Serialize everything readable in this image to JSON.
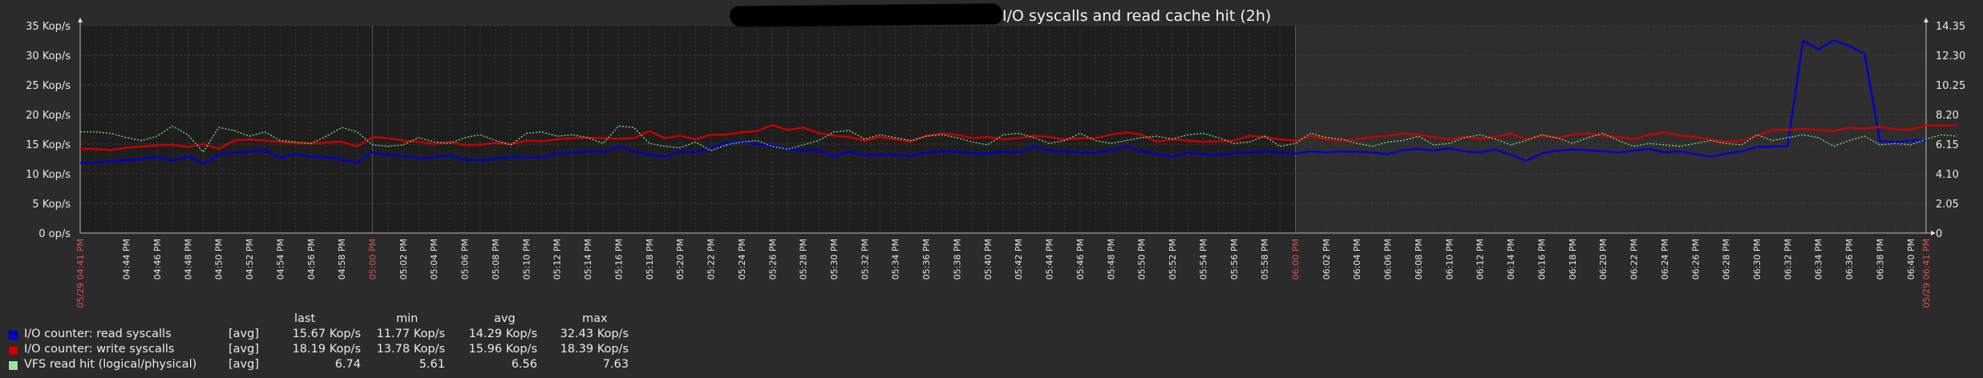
{
  "title": "I/O syscalls and read cache hit (2h)",
  "chart_data": {
    "type": "line",
    "y_left": {
      "min": 0,
      "max": 35,
      "ticks": [
        "0 op/s",
        "5 Kop/s",
        "10 Kop/s",
        "15 Kop/s",
        "20 Kop/s",
        "25 Kop/s",
        "30 Kop/s",
        "35 Kop/s"
      ]
    },
    "y_right": {
      "min": 0,
      "max": 14.35,
      "ticks": [
        "0",
        "2.05",
        "4.10",
        "6.15",
        "8.20",
        "10.25",
        "12.30",
        "14.35"
      ]
    },
    "x_labels": [
      {
        "t": 0,
        "label": "05/29 04:41 PM",
        "red": true
      },
      {
        "t": 3,
        "label": "04:44 PM"
      },
      {
        "t": 5,
        "label": "04:46 PM"
      },
      {
        "t": 7,
        "label": "04:48 PM"
      },
      {
        "t": 9,
        "label": "04:50 PM"
      },
      {
        "t": 11,
        "label": "04:52 PM"
      },
      {
        "t": 13,
        "label": "04:54 PM"
      },
      {
        "t": 15,
        "label": "04:56 PM"
      },
      {
        "t": 17,
        "label": "04:58 PM"
      },
      {
        "t": 19,
        "label": "05:00 PM",
        "red": true
      },
      {
        "t": 21,
        "label": "05:02 PM"
      },
      {
        "t": 23,
        "label": "05:04 PM"
      },
      {
        "t": 25,
        "label": "05:06 PM"
      },
      {
        "t": 27,
        "label": "05:08 PM"
      },
      {
        "t": 29,
        "label": "05:10 PM"
      },
      {
        "t": 31,
        "label": "05:12 PM"
      },
      {
        "t": 33,
        "label": "05:14 PM"
      },
      {
        "t": 35,
        "label": "05:16 PM"
      },
      {
        "t": 37,
        "label": "05:18 PM"
      },
      {
        "t": 39,
        "label": "05:20 PM"
      },
      {
        "t": 41,
        "label": "05:22 PM"
      },
      {
        "t": 43,
        "label": "05:24 PM"
      },
      {
        "t": 45,
        "label": "05:26 PM"
      },
      {
        "t": 47,
        "label": "05:28 PM"
      },
      {
        "t": 49,
        "label": "05:30 PM"
      },
      {
        "t": 51,
        "label": "05:32 PM"
      },
      {
        "t": 53,
        "label": "05:34 PM"
      },
      {
        "t": 55,
        "label": "05:36 PM"
      },
      {
        "t": 57,
        "label": "05:38 PM"
      },
      {
        "t": 59,
        "label": "05:40 PM"
      },
      {
        "t": 61,
        "label": "05:42 PM"
      },
      {
        "t": 63,
        "label": "05:44 PM"
      },
      {
        "t": 65,
        "label": "05:46 PM"
      },
      {
        "t": 67,
        "label": "05:48 PM"
      },
      {
        "t": 69,
        "label": "05:50 PM"
      },
      {
        "t": 71,
        "label": "05:52 PM"
      },
      {
        "t": 73,
        "label": "05:54 PM"
      },
      {
        "t": 75,
        "label": "05:56 PM"
      },
      {
        "t": 77,
        "label": "05:58 PM"
      },
      {
        "t": 79,
        "label": "06:00 PM",
        "red": true
      },
      {
        "t": 81,
        "label": "06:02 PM"
      },
      {
        "t": 83,
        "label": "06:04 PM"
      },
      {
        "t": 85,
        "label": "06:06 PM"
      },
      {
        "t": 87,
        "label": "06:08 PM"
      },
      {
        "t": 89,
        "label": "06:10 PM"
      },
      {
        "t": 91,
        "label": "06:12 PM"
      },
      {
        "t": 93,
        "label": "06:14 PM"
      },
      {
        "t": 95,
        "label": "06:16 PM"
      },
      {
        "t": 97,
        "label": "06:18 PM"
      },
      {
        "t": 99,
        "label": "06:20 PM"
      },
      {
        "t": 101,
        "label": "06:22 PM"
      },
      {
        "t": 103,
        "label": "06:24 PM"
      },
      {
        "t": 105,
        "label": "06:26 PM"
      },
      {
        "t": 107,
        "label": "06:28 PM"
      },
      {
        "t": 109,
        "label": "06:30 PM"
      },
      {
        "t": 111,
        "label": "06:32 PM"
      },
      {
        "t": 113,
        "label": "06:34 PM"
      },
      {
        "t": 115,
        "label": "06:36 PM"
      },
      {
        "t": 117,
        "label": "06:38 PM"
      },
      {
        "t": 119,
        "label": "06:40 PM"
      },
      {
        "t": 120,
        "label": "05/29 06:41 PM",
        "red": true
      }
    ],
    "series": [
      {
        "name": "I/O counter: read syscalls",
        "axis": "left",
        "color": "#0000cc",
        "style": "solid",
        "values": [
          11.8,
          11.9,
          12.1,
          12.3,
          12.5,
          12.8,
          12.2,
          12.9,
          11.7,
          13.2,
          13.6,
          13.8,
          14.0,
          12.6,
          13.4,
          12.9,
          12.8,
          12.4,
          11.9,
          13.6,
          13.2,
          13.0,
          12.6,
          12.7,
          13.1,
          12.4,
          12.3,
          12.5,
          12.9,
          12.7,
          12.8,
          13.4,
          13.6,
          13.8,
          13.7,
          14.6,
          13.8,
          13.2,
          12.9,
          13.8,
          13.6,
          14.3,
          15.2,
          15.4,
          15.0,
          14.8,
          14.2,
          13.9,
          14.0,
          12.9,
          13.8,
          13.1,
          13.3,
          13.2,
          13.0,
          13.6,
          13.8,
          13.7,
          13.5,
          13.4,
          13.8,
          13.6,
          14.6,
          13.9,
          13.8,
          13.6,
          13.5,
          14.0,
          14.6,
          13.8,
          13.3,
          12.9,
          13.6,
          13.3,
          13.2,
          13.5,
          13.6,
          13.8,
          13.6,
          13.4,
          13.8,
          13.6,
          13.8,
          13.7,
          13.6,
          13.3,
          14.0,
          14.2,
          13.9,
          14.3,
          13.8,
          13.6,
          14.1,
          13.2,
          12.2,
          13.4,
          13.9,
          14.1,
          14.0,
          13.8,
          13.6,
          13.9,
          14.2,
          13.6,
          13.8,
          13.3,
          12.9,
          13.4,
          13.8,
          14.5,
          14.6,
          14.7,
          32.4,
          31.0,
          32.5,
          31.6,
          30.2,
          15.6,
          15.3,
          15.6,
          15.7
        ]
      },
      {
        "name": "I/O counter: write syscalls",
        "axis": "left",
        "color": "#cc0000",
        "style": "solid",
        "values": [
          14.2,
          14.2,
          14.0,
          14.4,
          14.6,
          14.8,
          14.9,
          14.5,
          15.0,
          14.2,
          15.6,
          15.8,
          15.6,
          15.4,
          15.2,
          15.1,
          15.3,
          15.4,
          14.6,
          16.2,
          16.0,
          15.6,
          15.4,
          15.0,
          15.4,
          14.8,
          14.9,
          15.2,
          15.0,
          15.6,
          15.5,
          15.8,
          16.0,
          16.1,
          16.0,
          15.9,
          16.0,
          17.2,
          16.0,
          16.4,
          15.8,
          16.6,
          16.6,
          17.0,
          17.2,
          18.2,
          17.4,
          17.8,
          16.9,
          16.4,
          16.2,
          15.6,
          16.2,
          15.8,
          15.4,
          16.4,
          16.8,
          16.6,
          16.0,
          16.2,
          15.8,
          16.0,
          16.4,
          16.2,
          15.8,
          16.0,
          16.0,
          16.6,
          17.0,
          16.6,
          15.4,
          15.8,
          15.6,
          15.4,
          15.5,
          15.6,
          16.4,
          16.2,
          15.8,
          15.6,
          16.4,
          15.8,
          15.6,
          15.8,
          16.2,
          16.4,
          16.8,
          16.6,
          16.2,
          15.8,
          16.2,
          15.9,
          16.2,
          16.8,
          15.8,
          16.4,
          16.0,
          16.6,
          16.8,
          16.4,
          16.2,
          15.8,
          16.6,
          17.0,
          16.4,
          16.2,
          15.8,
          15.4,
          15.6,
          16.4,
          17.4,
          17.4,
          17.6,
          17.4,
          17.2,
          17.8,
          17.6,
          17.9,
          17.5,
          17.4,
          18.2,
          18.1,
          18.2
        ]
      },
      {
        "name": "VFS read hit (logical/physical)",
        "axis": "right",
        "color": "#7fcf7f",
        "style": "dotted",
        "values": [
          7.0,
          7.0,
          6.9,
          6.6,
          6.4,
          6.7,
          7.4,
          6.8,
          5.6,
          7.3,
          7.1,
          6.7,
          7.0,
          6.4,
          6.3,
          6.2,
          6.7,
          7.3,
          7.0,
          6.1,
          6.0,
          6.1,
          6.6,
          6.3,
          6.2,
          6.6,
          6.8,
          6.4,
          6.1,
          6.9,
          7.0,
          6.7,
          6.8,
          6.6,
          6.2,
          7.4,
          7.3,
          6.2,
          6.0,
          5.9,
          6.3,
          5.7,
          6.1,
          6.3,
          6.4,
          6.0,
          5.8,
          6.1,
          6.4,
          7.0,
          7.1,
          6.5,
          6.8,
          6.6,
          6.4,
          6.7,
          6.8,
          6.6,
          6.3,
          6.1,
          6.8,
          6.9,
          6.6,
          6.2,
          6.4,
          6.9,
          6.4,
          6.2,
          6.4,
          6.6,
          6.7,
          6.5,
          6.8,
          6.9,
          6.6,
          6.2,
          6.3,
          6.7,
          6.0,
          6.2,
          6.9,
          6.6,
          6.5,
          6.2,
          6.0,
          6.3,
          6.4,
          6.7,
          6.1,
          6.2,
          6.6,
          6.8,
          6.5,
          6.1,
          6.4,
          6.8,
          6.6,
          6.2,
          6.6,
          6.9,
          6.4,
          6.0,
          6.2,
          6.1,
          6.0,
          6.2,
          6.4,
          6.2,
          6.1,
          6.8,
          6.4,
          6.6,
          6.8,
          6.6,
          6.0,
          6.4,
          6.7,
          6.1,
          6.2,
          6.1,
          6.5,
          6.8,
          6.7
        ]
      }
    ]
  },
  "legend": {
    "headers": {
      "last": "last",
      "min": "min",
      "avg": "avg",
      "max": "max"
    },
    "rows": [
      {
        "label": "I/O counter: read syscalls",
        "color": "#0000cc",
        "func": "[avg]",
        "last": "15.67 Kop/s",
        "min": "11.77 Kop/s",
        "avg": "14.29 Kop/s",
        "max": "32.43 Kop/s"
      },
      {
        "label": "I/O counter: write syscalls",
        "color": "#cc0000",
        "func": "[avg]",
        "last": "18.19 Kop/s",
        "min": "13.78 Kop/s",
        "avg": "15.96 Kop/s",
        "max": "18.39 Kop/s"
      },
      {
        "label": "VFS read hit (logical/physical)",
        "color": "#9fe09f",
        "func": "[avg]",
        "last": "6.74",
        "min": "5.61",
        "avg": "6.56",
        "max": "7.63"
      }
    ]
  }
}
